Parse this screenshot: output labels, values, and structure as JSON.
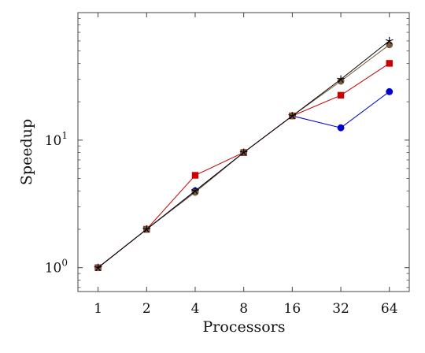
{
  "chart_data": {
    "type": "line",
    "xlabel": "Processors",
    "ylabel": "Speedup",
    "x_scale": "log2",
    "y_scale": "log10",
    "x": [
      1,
      2,
      4,
      8,
      16,
      32,
      64
    ],
    "x_tick_labels": [
      "1",
      "2",
      "4",
      "8",
      "16",
      "32",
      "64"
    ],
    "y_ticks": [
      {
        "value": 1,
        "base": "10",
        "exp": "0"
      },
      {
        "value": 10,
        "base": "10",
        "exp": "1"
      }
    ],
    "xlim": [
      0.75,
      85
    ],
    "ylim": [
      0.65,
      100
    ],
    "grid": false,
    "legend": "none",
    "series": [
      {
        "marker": "circle",
        "color": "#0000cc",
        "values": [
          1,
          2,
          4,
          8,
          15.5,
          12.5,
          24
        ]
      },
      {
        "marker": "square",
        "color": "#cc0000",
        "values": [
          1,
          2,
          5.3,
          8,
          15.5,
          22.5,
          40
        ]
      },
      {
        "marker": "circle",
        "color": "#7a5a3a",
        "values": [
          1,
          2,
          3.9,
          8,
          15.5,
          29,
          56
        ]
      },
      {
        "marker": "star",
        "color": "#000000",
        "values": [
          1,
          2,
          4,
          8,
          15.5,
          30,
          60
        ]
      }
    ]
  }
}
